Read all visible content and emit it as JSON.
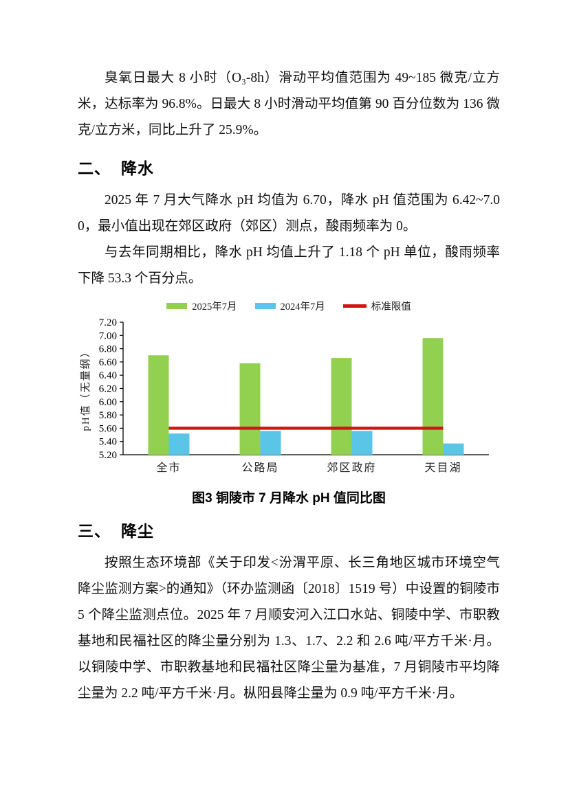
{
  "doc": {
    "paragraphs": {
      "ozone": "臭氧日最大 8 小时（O₃-8h）滑动平均值范围为 49~185 微克/立方米，达标率为 96.8%。日最大 8 小时滑动平均值第 90 百分位数为 136 微克/立方米，同比上升了 25.9%。",
      "ph_summary": "2025 年 7 月大气降水 pH 均值为 6.70，降水 pH 值范围为 6.42~7.00，最小值出现在郊区政府（郊区）测点，酸雨频率为 0。",
      "ph_compare": "与去年同期相比，降水 pH 均值上升了 1.18 个 pH 单位，酸雨频率下降 53.3 个百分点。",
      "dust": "按照生态环境部《关于印发<汾渭平原、长三角地区城市环境空气降尘监测方案>的通知》（环办监测函〔2018〕1519 号）中设置的铜陵市 5 个降尘监测点位。2025 年 7 月顺安河入江口水站、铜陵中学、市职教基地和民福社区的降尘量分别为 1.3、1.7、2.2 和 2.6 吨/平方千米·月。以铜陵中学、市职教基地和民福社区降尘量为基准，7 月铜陵市平均降尘量为 2.2 吨/平方千米·月。枞阳县降尘量为 0.9 吨/平方千米·月。"
    },
    "sections": {
      "rain": {
        "number": "二、",
        "title": "降水"
      },
      "dust": {
        "number": "三、",
        "title": "降尘"
      }
    },
    "chart_caption": "图3 铜陵市 7 月降水 pH 值同比图"
  },
  "chart_data": {
    "type": "bar",
    "title": "图3 铜陵市 7 月降水 pH 值同比图",
    "categories": [
      "全市",
      "公路局",
      "郊区政府",
      "天目湖"
    ],
    "series": [
      {
        "name": "2025年7月",
        "color": "#92D050",
        "values": [
          6.7,
          6.58,
          6.66,
          6.96
        ]
      },
      {
        "name": "2024年7月",
        "color": "#5BC5E8",
        "values": [
          5.52,
          5.56,
          5.56,
          5.37
        ]
      }
    ],
    "reference_line": {
      "name": "标准限值",
      "value": 5.6,
      "color": "#D31414"
    },
    "ylabel": "pH值（无量纲）",
    "xlabel": "",
    "ylim": [
      5.2,
      7.2
    ],
    "ytick_step": 0.2,
    "grid": false,
    "legend_position": "top",
    "axis_color": "#000000"
  }
}
